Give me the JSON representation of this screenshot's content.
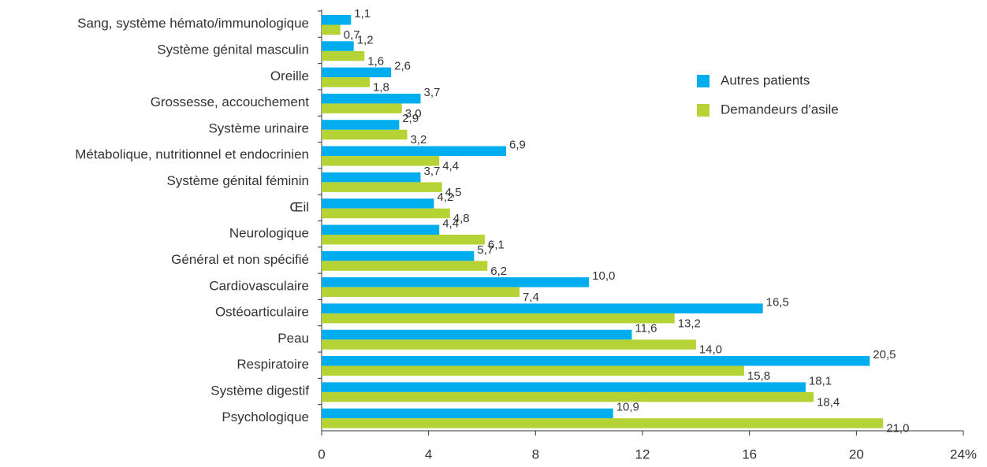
{
  "chart_data": {
    "type": "bar",
    "orientation": "horizontal",
    "categories": [
      "Sang, système hémato/immunologique",
      "Système génital masculin",
      "Oreille",
      "Grossesse, accouchement",
      "Système urinaire",
      "Métabolique, nutritionnel et endocrinien",
      "Système génital féminin",
      "Œil",
      "Neurologique",
      "Général et non spécifié",
      "Cardiovasculaire",
      "Ostéoarticulaire",
      "Peau",
      "Respiratoire",
      "Système digestif",
      "Psychologique"
    ],
    "series": [
      {
        "name": "Autres patients",
        "color": "#00aeef",
        "values": [
          1.1,
          1.2,
          2.6,
          3.7,
          2.9,
          6.9,
          3.7,
          4.2,
          4.4,
          5.7,
          10.0,
          16.5,
          11.6,
          20.5,
          18.1,
          10.9
        ],
        "value_labels": [
          "1,1",
          "1,2",
          "2,6",
          "3,7",
          "2,9",
          "6,9",
          "3,7",
          "4,2",
          "4,4",
          "5,7",
          "10,0",
          "16,5",
          "11,6",
          "20,5",
          "18,1",
          "10,9"
        ]
      },
      {
        "name": "Demandeurs d'asile",
        "color": "#b5d334",
        "values": [
          0.7,
          1.6,
          1.8,
          3.0,
          3.2,
          4.4,
          4.5,
          4.8,
          6.1,
          6.2,
          7.4,
          13.2,
          14.0,
          15.8,
          18.4,
          21.0
        ],
        "value_labels": [
          "0,7",
          "1,6",
          "1,8",
          "3,0",
          "3,2",
          "4,4",
          "4,5",
          "4,8",
          "6,1",
          "6,2",
          "7,4",
          "13,2",
          "14,0",
          "15,8",
          "18,4",
          "21,0"
        ]
      }
    ],
    "xlim": [
      0,
      24
    ],
    "xticks": [
      0,
      4,
      8,
      12,
      16,
      20,
      {
        "value": 24,
        "label": "24%"
      }
    ],
    "grid": false,
    "legend": "upper right"
  }
}
